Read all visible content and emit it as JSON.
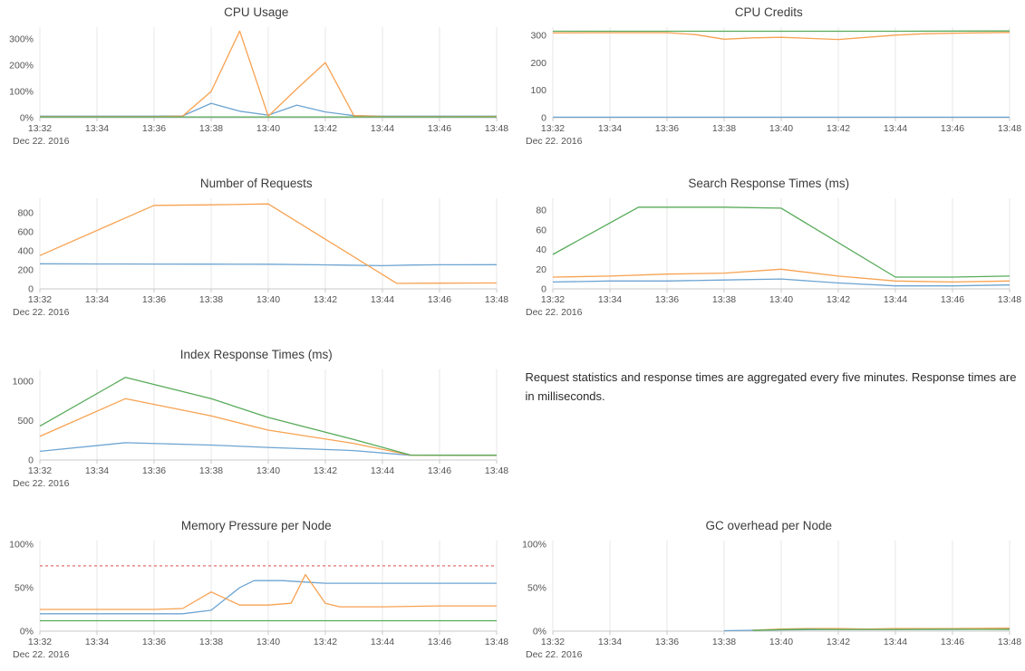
{
  "palette": {
    "blue": "#6da4d1",
    "orange": "#f7a251",
    "green": "#58ab5a",
    "red": "#e4716f",
    "gridline": "#e7e7e7",
    "axis": "#c9c9c9"
  },
  "note": {
    "text": "Request statistics and response times are aggregated every five minutes. Response times are in milliseconds."
  },
  "chart_data": [
    {
      "type": "line",
      "title": "CPU Usage",
      "x_ticks": [
        "13:32",
        "13:34",
        "13:36",
        "13:38",
        "13:40",
        "13:42",
        "13:44",
        "13:46",
        "13:48"
      ],
      "x_sub_label": "Dec 22. 2016",
      "x_unit": "minutes since 13:32",
      "x_range": [
        0,
        16
      ],
      "ylim": [
        0,
        345
      ],
      "y_ticks": [
        {
          "v": 0,
          "label": "0%"
        },
        {
          "v": 100,
          "label": "100%"
        },
        {
          "v": 200,
          "label": "200%"
        },
        {
          "v": 300,
          "label": "300%"
        }
      ],
      "series": [
        {
          "color": "blue",
          "points": [
            [
              0,
              6
            ],
            [
              2,
              6
            ],
            [
              4,
              6
            ],
            [
              5,
              7
            ],
            [
              6,
              55
            ],
            [
              7,
              25
            ],
            [
              8,
              10
            ],
            [
              9,
              48
            ],
            [
              10,
              22
            ],
            [
              11,
              8
            ],
            [
              12,
              6
            ],
            [
              14,
              6
            ],
            [
              16,
              6
            ]
          ]
        },
        {
          "color": "orange",
          "points": [
            [
              0,
              4
            ],
            [
              2,
              4
            ],
            [
              4,
              4
            ],
            [
              5,
              6
            ],
            [
              6,
              100
            ],
            [
              7,
              330
            ],
            [
              8,
              6
            ],
            [
              9,
              110
            ],
            [
              10,
              210
            ],
            [
              11,
              8
            ],
            [
              12,
              5
            ],
            [
              14,
              4
            ],
            [
              16,
              5
            ]
          ]
        },
        {
          "color": "green",
          "points": [
            [
              0,
              3
            ],
            [
              4,
              3
            ],
            [
              8,
              3
            ],
            [
              12,
              3
            ],
            [
              16,
              3
            ]
          ]
        }
      ]
    },
    {
      "type": "line",
      "title": "CPU Credits",
      "x_ticks": [
        "13:32",
        "13:34",
        "13:36",
        "13:38",
        "13:40",
        "13:42",
        "13:44",
        "13:46",
        "13:48"
      ],
      "x_sub_label": "Dec 22. 2016",
      "x_unit": "minutes since 13:32",
      "x_range": [
        0,
        16
      ],
      "ylim": [
        0,
        330
      ],
      "y_ticks": [
        {
          "v": 0,
          "label": "0"
        },
        {
          "v": 100,
          "label": "100"
        },
        {
          "v": 200,
          "label": "200"
        },
        {
          "v": 300,
          "label": "300"
        }
      ],
      "series": [
        {
          "color": "blue",
          "points": [
            [
              0,
              2
            ],
            [
              8,
              2
            ],
            [
              16,
              2
            ]
          ]
        },
        {
          "color": "orange",
          "points": [
            [
              0,
              309
            ],
            [
              2,
              310
            ],
            [
              4,
              310
            ],
            [
              5,
              303
            ],
            [
              6,
              286
            ],
            [
              7,
              291
            ],
            [
              8,
              293
            ],
            [
              9,
              289
            ],
            [
              10,
              285
            ],
            [
              11,
              293
            ],
            [
              12,
              301
            ],
            [
              13,
              306
            ],
            [
              14,
              308
            ],
            [
              16,
              311
            ]
          ]
        },
        {
          "color": "green",
          "points": [
            [
              0,
              315
            ],
            [
              4,
              315
            ],
            [
              8,
              315
            ],
            [
              12,
              315
            ],
            [
              16,
              316
            ]
          ]
        }
      ]
    },
    {
      "type": "line",
      "title": "Number of Requests",
      "x_ticks": [
        "13:32",
        "13:34",
        "13:36",
        "13:38",
        "13:40",
        "13:42",
        "13:44",
        "13:46",
        "13:48"
      ],
      "x_sub_label": "Dec 22. 2016",
      "x_unit": "minutes since 13:32",
      "x_range": [
        0,
        16
      ],
      "ylim": [
        0,
        950
      ],
      "y_ticks": [
        {
          "v": 0,
          "label": "0"
        },
        {
          "v": 200,
          "label": "200"
        },
        {
          "v": 400,
          "label": "400"
        },
        {
          "v": 600,
          "label": "600"
        },
        {
          "v": 800,
          "label": "800"
        }
      ],
      "series": [
        {
          "color": "blue",
          "points": [
            [
              0,
              263
            ],
            [
              2,
              261
            ],
            [
              4,
              260
            ],
            [
              6,
              259
            ],
            [
              8,
              258
            ],
            [
              10,
              252
            ],
            [
              12,
              243
            ],
            [
              13,
              250
            ],
            [
              14,
              253
            ],
            [
              16,
              254
            ]
          ]
        },
        {
          "color": "orange",
          "points": [
            [
              0,
              350
            ],
            [
              4,
              876
            ],
            [
              6,
              882
            ],
            [
              8,
              891
            ],
            [
              12.5,
              58
            ],
            [
              14,
              60
            ],
            [
              16,
              62
            ]
          ]
        }
      ]
    },
    {
      "type": "line",
      "title": "Search Response Times (ms)",
      "x_ticks": [
        "13:32",
        "13:34",
        "13:36",
        "13:38",
        "13:40",
        "13:42",
        "13:44",
        "13:46",
        "13:48"
      ],
      "x_sub_label": "Dec 22. 2016",
      "x_unit": "minutes since 13:32",
      "x_range": [
        0,
        16
      ],
      "ylim": [
        0,
        92
      ],
      "y_ticks": [
        {
          "v": 0,
          "label": "0"
        },
        {
          "v": 20,
          "label": "20"
        },
        {
          "v": 40,
          "label": "40"
        },
        {
          "v": 60,
          "label": "60"
        },
        {
          "v": 80,
          "label": "80"
        }
      ],
      "series": [
        {
          "color": "blue",
          "points": [
            [
              0,
              7
            ],
            [
              2,
              8
            ],
            [
              4,
              8
            ],
            [
              6,
              9
            ],
            [
              8,
              10
            ],
            [
              10,
              6
            ],
            [
              12,
              3
            ],
            [
              14,
              3
            ],
            [
              16,
              4
            ]
          ]
        },
        {
          "color": "orange",
          "points": [
            [
              0,
              12
            ],
            [
              2,
              13
            ],
            [
              4,
              15
            ],
            [
              6,
              16
            ],
            [
              8,
              20
            ],
            [
              10,
              13
            ],
            [
              12,
              8
            ],
            [
              14,
              7
            ],
            [
              16,
              8
            ]
          ]
        },
        {
          "color": "green",
          "points": [
            [
              0,
              35
            ],
            [
              3,
              83
            ],
            [
              6,
              83
            ],
            [
              8,
              82
            ],
            [
              12,
              12
            ],
            [
              14,
              12
            ],
            [
              16,
              13
            ]
          ]
        }
      ]
    },
    {
      "type": "line",
      "title": "Index Response Times (ms)",
      "x_ticks": [
        "13:32",
        "13:34",
        "13:36",
        "13:38",
        "13:40",
        "13:42",
        "13:44",
        "13:46",
        "13:48"
      ],
      "x_sub_label": "Dec 22. 2016",
      "x_unit": "minutes since 13:32",
      "x_range": [
        0,
        16
      ],
      "ylim": [
        0,
        1150
      ],
      "y_ticks": [
        {
          "v": 0,
          "label": "0"
        },
        {
          "v": 500,
          "label": "500"
        },
        {
          "v": 1000,
          "label": "1000"
        }
      ],
      "series": [
        {
          "color": "blue",
          "points": [
            [
              0,
              110
            ],
            [
              3,
              220
            ],
            [
              6,
              190
            ],
            [
              8,
              160
            ],
            [
              11,
              120
            ],
            [
              13,
              60
            ],
            [
              16,
              58
            ]
          ]
        },
        {
          "color": "orange",
          "points": [
            [
              0,
              300
            ],
            [
              3,
              780
            ],
            [
              6,
              560
            ],
            [
              8,
              380
            ],
            [
              11,
              210
            ],
            [
              13,
              60
            ],
            [
              16,
              60
            ]
          ]
        },
        {
          "color": "green",
          "points": [
            [
              0,
              430
            ],
            [
              3,
              1050
            ],
            [
              6,
              780
            ],
            [
              8,
              540
            ],
            [
              11,
              260
            ],
            [
              13,
              62
            ],
            [
              16,
              62
            ]
          ]
        }
      ]
    },
    {
      "type": "line",
      "title": "Memory Pressure per Node",
      "x_ticks": [
        "13:32",
        "13:34",
        "13:36",
        "13:38",
        "13:40",
        "13:42",
        "13:44",
        "13:46",
        "13:48"
      ],
      "x_sub_label": "Dec 22. 2016",
      "x_unit": "minutes since 13:32",
      "x_range": [
        0,
        16
      ],
      "ylim": [
        0,
        104
      ],
      "y_ticks": [
        {
          "v": 0,
          "label": "0%"
        },
        {
          "v": 50,
          "label": "50%"
        },
        {
          "v": 100,
          "label": "100%"
        }
      ],
      "ref_lines": [
        {
          "v": 75,
          "color": "red",
          "style": "dashed"
        }
      ],
      "series": [
        {
          "color": "blue",
          "points": [
            [
              0,
              20
            ],
            [
              2,
              20
            ],
            [
              4,
              20
            ],
            [
              5,
              20
            ],
            [
              6,
              24
            ],
            [
              7,
              50
            ],
            [
              7.5,
              58
            ],
            [
              8.5,
              58
            ],
            [
              9.5,
              56
            ],
            [
              10,
              55
            ],
            [
              12,
              55
            ],
            [
              14,
              55
            ],
            [
              16,
              55
            ]
          ]
        },
        {
          "color": "orange",
          "points": [
            [
              0,
              25
            ],
            [
              2,
              25
            ],
            [
              4,
              25
            ],
            [
              5,
              26
            ],
            [
              6,
              45
            ],
            [
              7,
              30
            ],
            [
              8,
              30
            ],
            [
              8.8,
              32
            ],
            [
              9.3,
              65
            ],
            [
              10,
              32
            ],
            [
              10.5,
              28
            ],
            [
              12,
              28
            ],
            [
              14,
              29
            ],
            [
              16,
              29
            ]
          ]
        },
        {
          "color": "green",
          "points": [
            [
              0,
              12
            ],
            [
              4,
              12
            ],
            [
              8,
              12
            ],
            [
              12,
              12
            ],
            [
              16,
              12
            ]
          ]
        }
      ]
    },
    {
      "type": "line",
      "title": "GC overhead per Node",
      "x_ticks": [
        "13:32",
        "13:34",
        "13:36",
        "13:38",
        "13:40",
        "13:42",
        "13:44",
        "13:46",
        "13:48"
      ],
      "x_sub_label": "Dec 22. 2016",
      "x_unit": "minutes since 13:32",
      "x_range": [
        0,
        16
      ],
      "ylim": [
        0,
        104
      ],
      "y_ticks": [
        {
          "v": 0,
          "label": "0%"
        },
        {
          "v": 50,
          "label": "50%"
        },
        {
          "v": 100,
          "label": "100%"
        }
      ],
      "series": [
        {
          "color": "blue",
          "points": [
            [
              6,
              0.5
            ],
            [
              7,
              1
            ],
            [
              8,
              1.5
            ],
            [
              10,
              2
            ],
            [
              12,
              2
            ],
            [
              14,
              2
            ],
            [
              16,
              2.5
            ]
          ]
        },
        {
          "color": "orange",
          "points": [
            [
              7,
              1
            ],
            [
              8,
              2.5
            ],
            [
              9,
              3
            ],
            [
              10,
              3
            ],
            [
              11,
              2.5
            ],
            [
              12,
              3
            ],
            [
              14,
              3
            ],
            [
              16,
              3.5
            ]
          ]
        },
        {
          "color": "green",
          "points": [
            [
              7,
              0.8
            ],
            [
              8,
              1.8
            ],
            [
              9,
              2.2
            ],
            [
              10,
              2
            ],
            [
              12,
              2
            ],
            [
              14,
              2.2
            ],
            [
              16,
              2
            ]
          ]
        }
      ]
    }
  ]
}
